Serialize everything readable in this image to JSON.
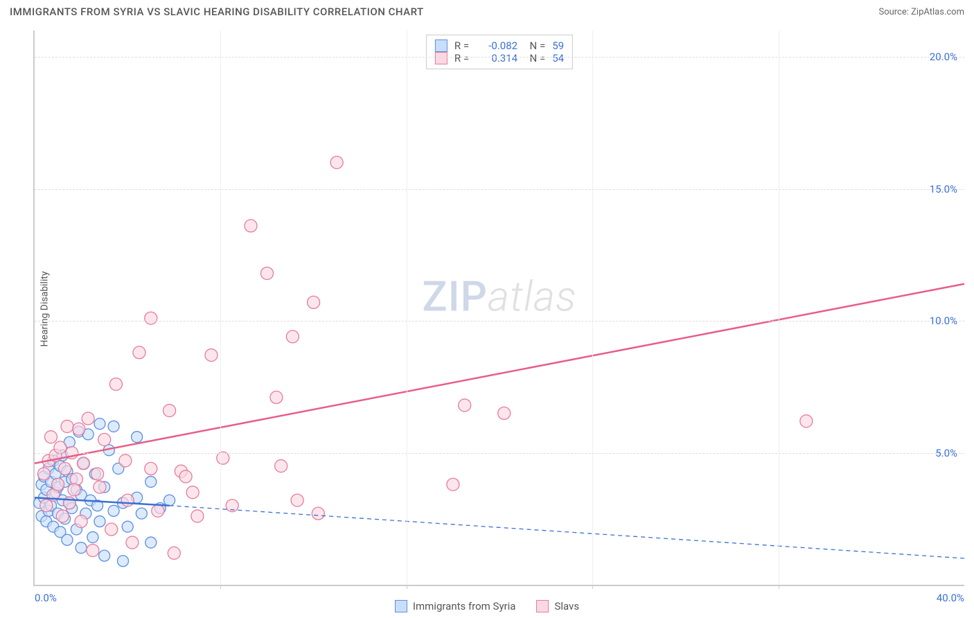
{
  "header": {
    "title": "IMMIGRANTS FROM SYRIA VS SLAVIC HEARING DISABILITY CORRELATION CHART",
    "source": "Source: ZipAtlas.com"
  },
  "chart": {
    "type": "scatter",
    "ylabel": "Hearing Disability",
    "xlim": [
      0,
      40
    ],
    "ylim": [
      0,
      21
    ],
    "xtick_positions": [
      0,
      8,
      16,
      24,
      32,
      40
    ],
    "xtick_labels": [
      "0.0%",
      "",
      "",
      "",
      "",
      "40.0%"
    ],
    "ytick_positions": [
      5,
      10,
      15,
      20
    ],
    "ytick_labels": [
      "5.0%",
      "10.0%",
      "15.0%",
      "20.0%"
    ],
    "grid_color": "#dddddd",
    "axis_color": "#cccccc",
    "background_color": "#ffffff",
    "series": [
      {
        "name": "Immigrants from Syria",
        "color_fill": "#c9defa",
        "color_stroke": "#5a8fe0",
        "marker_radius": 8,
        "r": -0.082,
        "n": 59,
        "trend": {
          "x1": 0,
          "y1": 3.3,
          "x2": 5.8,
          "y2": 3.0,
          "dashed_ext_x2": 40,
          "dashed_ext_y2": 1.0,
          "solid_width": 2.5,
          "color": "#3b6fd4"
        },
        "points": [
          [
            0.2,
            3.1
          ],
          [
            0.3,
            3.8
          ],
          [
            0.3,
            2.6
          ],
          [
            0.4,
            3.3
          ],
          [
            0.4,
            4.1
          ],
          [
            0.5,
            2.4
          ],
          [
            0.5,
            3.6
          ],
          [
            0.6,
            4.4
          ],
          [
            0.6,
            2.8
          ],
          [
            0.7,
            3.9
          ],
          [
            0.7,
            3.0
          ],
          [
            0.8,
            4.7
          ],
          [
            0.8,
            2.2
          ],
          [
            0.9,
            3.5
          ],
          [
            0.9,
            4.2
          ],
          [
            1.0,
            2.7
          ],
          [
            1.0,
            3.7
          ],
          [
            1.1,
            4.5
          ],
          [
            1.1,
            2.0
          ],
          [
            1.2,
            3.2
          ],
          [
            1.2,
            4.9
          ],
          [
            1.3,
            2.5
          ],
          [
            1.3,
            3.9
          ],
          [
            1.4,
            4.3
          ],
          [
            1.4,
            1.7
          ],
          [
            1.5,
            3.1
          ],
          [
            1.5,
            5.4
          ],
          [
            1.6,
            2.9
          ],
          [
            1.6,
            4.0
          ],
          [
            1.8,
            3.6
          ],
          [
            1.8,
            2.1
          ],
          [
            1.9,
            5.8
          ],
          [
            2.0,
            3.4
          ],
          [
            2.0,
            1.4
          ],
          [
            2.1,
            4.6
          ],
          [
            2.2,
            2.7
          ],
          [
            2.3,
            5.7
          ],
          [
            2.4,
            3.2
          ],
          [
            2.5,
            1.8
          ],
          [
            2.6,
            4.2
          ],
          [
            2.8,
            2.4
          ],
          [
            2.8,
            6.1
          ],
          [
            3.0,
            3.7
          ],
          [
            3.0,
            1.1
          ],
          [
            3.2,
            5.1
          ],
          [
            3.4,
            2.8
          ],
          [
            3.4,
            6.0
          ],
          [
            3.6,
            4.4
          ],
          [
            3.8,
            3.1
          ],
          [
            3.8,
            0.9
          ],
          [
            4.0,
            2.2
          ],
          [
            4.4,
            5.6
          ],
          [
            4.4,
            3.3
          ],
          [
            4.6,
            2.7
          ],
          [
            5.0,
            3.9
          ],
          [
            5.0,
            1.6
          ],
          [
            5.4,
            2.9
          ],
          [
            5.8,
            3.2
          ],
          [
            2.7,
            3.0
          ]
        ]
      },
      {
        "name": "Slavs",
        "color_fill": "#fbd9e2",
        "color_stroke": "#e67b9c",
        "marker_radius": 9,
        "r": 0.314,
        "n": 54,
        "trend": {
          "x1": 0,
          "y1": 4.6,
          "x2": 40,
          "y2": 11.4,
          "solid_width": 2.5,
          "color": "#e85d88"
        },
        "points": [
          [
            0.4,
            4.2
          ],
          [
            0.5,
            3.0
          ],
          [
            0.6,
            4.7
          ],
          [
            0.7,
            5.6
          ],
          [
            0.8,
            3.4
          ],
          [
            0.9,
            4.9
          ],
          [
            1.0,
            3.8
          ],
          [
            1.1,
            5.2
          ],
          [
            1.2,
            2.6
          ],
          [
            1.3,
            4.4
          ],
          [
            1.4,
            6.0
          ],
          [
            1.5,
            3.1
          ],
          [
            1.6,
            5.0
          ],
          [
            1.8,
            4.0
          ],
          [
            1.9,
            5.9
          ],
          [
            2.0,
            2.4
          ],
          [
            2.1,
            4.6
          ],
          [
            2.3,
            6.3
          ],
          [
            2.5,
            1.3
          ],
          [
            2.7,
            4.2
          ],
          [
            3.0,
            5.5
          ],
          [
            3.3,
            2.1
          ],
          [
            3.5,
            7.6
          ],
          [
            3.9,
            4.7
          ],
          [
            4.2,
            1.6
          ],
          [
            4.5,
            8.8
          ],
          [
            5.0,
            4.4
          ],
          [
            5.0,
            10.1
          ],
          [
            5.3,
            2.8
          ],
          [
            5.8,
            6.6
          ],
          [
            6.0,
            1.2
          ],
          [
            6.3,
            4.3
          ],
          [
            6.8,
            3.5
          ],
          [
            7.0,
            2.6
          ],
          [
            7.6,
            8.7
          ],
          [
            8.1,
            4.8
          ],
          [
            8.5,
            3.0
          ],
          [
            9.3,
            13.6
          ],
          [
            10.0,
            11.8
          ],
          [
            10.4,
            7.1
          ],
          [
            10.6,
            4.5
          ],
          [
            11.1,
            9.4
          ],
          [
            11.3,
            3.2
          ],
          [
            12.0,
            10.7
          ],
          [
            12.2,
            2.7
          ],
          [
            13.0,
            16.0
          ],
          [
            18.0,
            3.8
          ],
          [
            18.5,
            6.8
          ],
          [
            20.2,
            6.5
          ],
          [
            33.2,
            6.2
          ],
          [
            1.7,
            3.6
          ],
          [
            2.8,
            3.7
          ],
          [
            4.0,
            3.2
          ],
          [
            6.5,
            4.1
          ]
        ]
      }
    ],
    "watermark": {
      "zip": "ZIP",
      "atlas": "atlas"
    }
  },
  "legend_bottom": {
    "items": [
      {
        "label": "Immigrants from Syria",
        "fill": "#c9defa",
        "stroke": "#5a8fe0"
      },
      {
        "label": "Slavs",
        "fill": "#fbd9e2",
        "stroke": "#e67b9c"
      }
    ]
  }
}
